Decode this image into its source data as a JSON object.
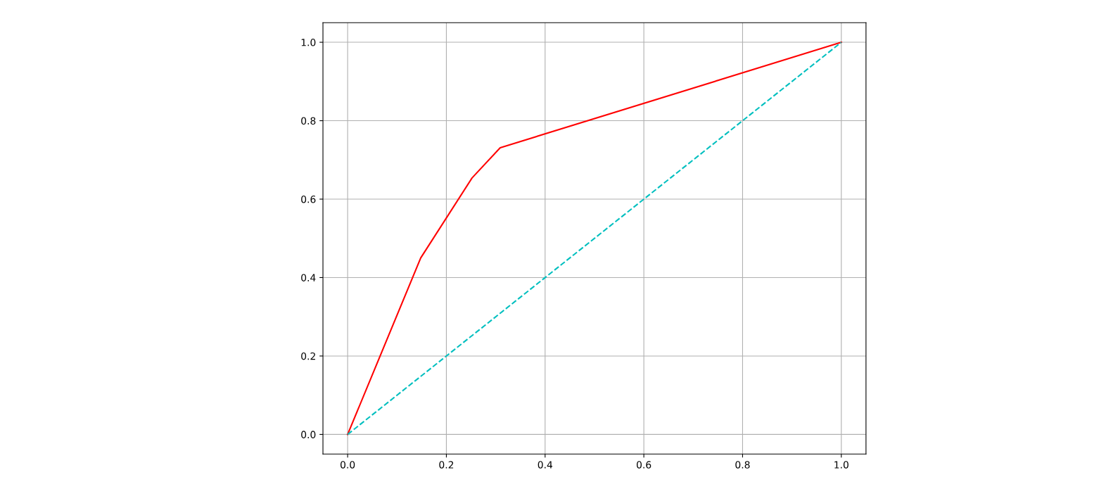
{
  "chart_data": {
    "type": "line",
    "xlim": [
      -0.05,
      1.05
    ],
    "ylim": [
      -0.05,
      1.05
    ],
    "xticks": [
      {
        "value": 0,
        "label": "0.0"
      },
      {
        "value": 0.2,
        "label": "0.2"
      },
      {
        "value": 0.4,
        "label": "0.4"
      },
      {
        "value": 0.6,
        "label": "0.6"
      },
      {
        "value": 0.8,
        "label": "0.8"
      },
      {
        "value": 1,
        "label": "1.0"
      }
    ],
    "yticks": [
      {
        "value": 0,
        "label": "0.0"
      },
      {
        "value": 0.2,
        "label": "0.2"
      },
      {
        "value": 0.4,
        "label": "0.4"
      },
      {
        "value": 0.6,
        "label": "0.6"
      },
      {
        "value": 0.8,
        "label": "0.8"
      },
      {
        "value": 1,
        "label": "1.0"
      }
    ],
    "grid": true,
    "series": [
      {
        "color": "#ff0000",
        "line_style": "solid",
        "x": [
          0,
          0.148,
          0.252,
          0.309,
          1
        ],
        "values": [
          0,
          0.45,
          0.654,
          0.731,
          1
        ]
      },
      {
        "color": "#00bfbf",
        "line_style": "dashed",
        "x": [
          0,
          1
        ],
        "values": [
          0,
          1
        ]
      }
    ]
  }
}
